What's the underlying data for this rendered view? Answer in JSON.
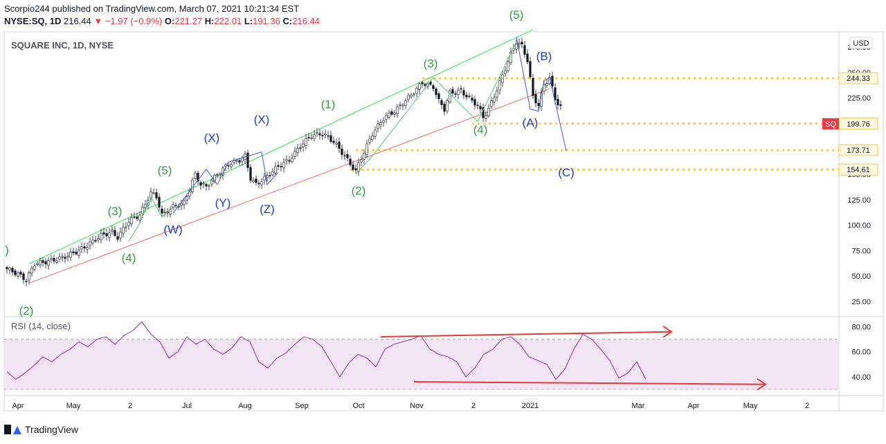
{
  "header": {
    "published": "Scorpio244 published on TradingView.com, March 07, 2021 10:21:34 EST",
    "symbol": "NYSE:SQ, 1D",
    "last": "216.44",
    "change": "−1.97 (−0.9%)",
    "o_label": "O:",
    "o": "221.27",
    "h_label": "H:",
    "h": "222.01",
    "l_label": "L:",
    "l": "191.36",
    "c_label": "C:",
    "c": "216.44"
  },
  "chart_title": "SQUARE INC, 1D, NYSE",
  "currency_button": "USD",
  "ticker_badge": "SQ",
  "branding": "TradingView",
  "colors": {
    "up": "#089981",
    "down": "#f23645",
    "wave_green": "#2e9e3e",
    "wave_blue": "#1a3fb5",
    "channel_top": "#2ee84a",
    "channel_bottom": "#f26a6a",
    "level": "#f5c542",
    "rsi": "#9c27b0",
    "rsi_band": "#f3e5f5"
  },
  "chart_data": [
    {
      "type": "candlestick",
      "title": "SQUARE INC, 1D, NYSE",
      "ylim": [
        10,
        290
      ],
      "y_ticks": [
        25,
        50,
        75,
        100,
        125,
        150,
        175,
        200,
        225,
        250,
        275
      ],
      "y_tick_labels": [
        "25.00",
        "50.00",
        "75.00",
        "100.00",
        "125.00",
        "150.00",
        "175.00",
        "200.00",
        "225.00",
        "250.00",
        "275.00"
      ],
      "x_labels": [
        "Apr",
        "May",
        "2",
        "Jul",
        "Aug",
        "Sep",
        "Oct",
        "Nov",
        "2",
        "2021",
        "Mar",
        "Apr",
        "May",
        "2"
      ],
      "price_path": [
        [
          0,
          57
        ],
        [
          4,
          52
        ],
        [
          7,
          46
        ],
        [
          10,
          62
        ],
        [
          14,
          64
        ],
        [
          20,
          68
        ],
        [
          26,
          75
        ],
        [
          30,
          82
        ],
        [
          34,
          90
        ],
        [
          38,
          93
        ],
        [
          40,
          88
        ],
        [
          44,
          104
        ],
        [
          48,
          110
        ],
        [
          52,
          132
        ],
        [
          54,
          128
        ],
        [
          56,
          110
        ],
        [
          60,
          118
        ],
        [
          64,
          122
        ],
        [
          68,
          150
        ],
        [
          70,
          140
        ],
        [
          72,
          138
        ],
        [
          76,
          150
        ],
        [
          80,
          160
        ],
        [
          84,
          164
        ],
        [
          86,
          168
        ],
        [
          88,
          146
        ],
        [
          90,
          140
        ],
        [
          94,
          148
        ],
        [
          98,
          158
        ],
        [
          102,
          164
        ],
        [
          106,
          178
        ],
        [
          110,
          188
        ],
        [
          114,
          190
        ],
        [
          118,
          182
        ],
        [
          122,
          168
        ],
        [
          124,
          160
        ],
        [
          126,
          153
        ],
        [
          128,
          166
        ],
        [
          132,
          190
        ],
        [
          136,
          205
        ],
        [
          140,
          212
        ],
        [
          146,
          228
        ],
        [
          150,
          240
        ],
        [
          154,
          236
        ],
        [
          156,
          222
        ],
        [
          158,
          214
        ],
        [
          160,
          230
        ],
        [
          164,
          232
        ],
        [
          168,
          222
        ],
        [
          170,
          218
        ],
        [
          172,
          206
        ],
        [
          174,
          214
        ],
        [
          178,
          240
        ],
        [
          182,
          268
        ],
        [
          184,
          280
        ],
        [
          186,
          276
        ],
        [
          188,
          262
        ],
        [
          190,
          226
        ],
        [
          192,
          218
        ],
        [
          194,
          238
        ],
        [
          196,
          245
        ],
        [
          198,
          224
        ],
        [
          200,
          216
        ]
      ],
      "levels": [
        244.33,
        199.76,
        173.71,
        154.61
      ],
      "level_labels": [
        "244.33",
        "199.76",
        "173.71",
        "154.61"
      ],
      "current_price_label": "SQ",
      "channel": {
        "upper": [
          [
            8,
            62
          ],
          [
            190,
            292
          ]
        ],
        "lower": [
          [
            8,
            43
          ],
          [
            196,
            234
          ]
        ]
      },
      "wave_labels": [
        {
          "text": ")",
          "x": 0,
          "y": 72,
          "color": "green"
        },
        {
          "text": "(2)",
          "x": 7,
          "y": 12,
          "color": "green"
        },
        {
          "text": "(3)",
          "x": 39,
          "y": 110,
          "color": "green"
        },
        {
          "text": "(4)",
          "x": 44,
          "y": 64,
          "color": "green"
        },
        {
          "text": "(5)",
          "x": 57,
          "y": 150,
          "color": "green"
        },
        {
          "text": "(W)",
          "x": 60,
          "y": 92,
          "color": "blue"
        },
        {
          "text": "(X)",
          "x": 74,
          "y": 182,
          "color": "blue"
        },
        {
          "text": "(Y)",
          "x": 78,
          "y": 118,
          "color": "blue"
        },
        {
          "text": "(X)",
          "x": 92,
          "y": 200,
          "color": "blue"
        },
        {
          "text": "(Z)",
          "x": 94,
          "y": 112,
          "color": "blue"
        },
        {
          "text": "(1)",
          "x": 116,
          "y": 215,
          "color": "green"
        },
        {
          "text": "(2)",
          "x": 127,
          "y": 130,
          "color": "green"
        },
        {
          "text": "(3)",
          "x": 153,
          "y": 255,
          "color": "green"
        },
        {
          "text": "(4)",
          "x": 171,
          "y": 190,
          "color": "green"
        },
        {
          "text": "(5)",
          "x": 184,
          "y": 303,
          "color": "green"
        },
        {
          "text": "(B)",
          "x": 194,
          "y": 262,
          "color": "blue"
        },
        {
          "text": "(A)",
          "x": 189,
          "y": 197,
          "color": "blue"
        },
        {
          "text": "(C)",
          "x": 202,
          "y": 148,
          "color": "blue"
        }
      ],
      "wave_paths": {
        "green_1": [
          [
            44,
            84
          ],
          [
            48,
            102
          ],
          [
            52,
            128
          ],
          [
            56,
            108
          ],
          [
            60,
            118
          ]
        ],
        "blue_wxyz": [
          [
            60,
            112
          ],
          [
            72,
            155
          ],
          [
            76,
            140
          ],
          [
            80,
            162
          ],
          [
            92,
            172
          ],
          [
            94,
            140
          ],
          [
            98,
            152
          ]
        ],
        "green_2": [
          [
            126,
            150
          ],
          [
            132,
            168
          ],
          [
            154,
            245
          ],
          [
            170,
            202
          ],
          [
            184,
            280
          ]
        ],
        "blue_abc": [
          [
            184,
            285
          ],
          [
            189,
            214
          ],
          [
            192,
            212
          ],
          [
            194,
            242
          ],
          [
            196,
            245
          ],
          [
            202,
            173
          ]
        ]
      }
    },
    {
      "type": "line",
      "title": "RSI (14, close)",
      "ylim": [
        25,
        88
      ],
      "y_ticks": [
        40,
        60,
        80
      ],
      "y_tick_labels": [
        "40.00",
        "60.00",
        "80.00"
      ],
      "band": [
        30,
        70
      ],
      "values": [
        44,
        38,
        43,
        49,
        56,
        52,
        58,
        62,
        68,
        64,
        70,
        72,
        66,
        73,
        77,
        84,
        74,
        68,
        55,
        60,
        72,
        66,
        70,
        62,
        58,
        63,
        72,
        68,
        52,
        47,
        55,
        59,
        66,
        72,
        70,
        64,
        52,
        40,
        51,
        58,
        55,
        48,
        62,
        66,
        68,
        70,
        73,
        62,
        58,
        56,
        52,
        40,
        47,
        58,
        62,
        70,
        72,
        66,
        56,
        53,
        50,
        38,
        46,
        62,
        74,
        70,
        62,
        53,
        39,
        43,
        52,
        38
      ],
      "trendlines": {
        "upper": [
          [
            32,
            72
          ],
          [
            60,
            76
          ]
        ],
        "lower": [
          [
            34,
            36
          ],
          [
            68,
            34
          ]
        ]
      }
    }
  ]
}
